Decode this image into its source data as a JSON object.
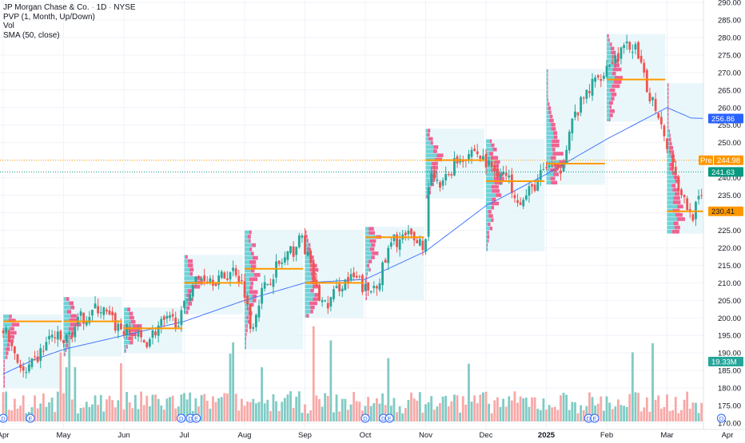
{
  "legend": {
    "title": "JP Morgan Chase & Co.",
    "interval": "1D",
    "exchange": "NYSE",
    "separator": "·",
    "indicators": [
      "PVP (1, Month, Up/Down)",
      "Vol",
      "SMA (50, close)"
    ]
  },
  "colors": {
    "up": "#26a69a",
    "down": "#ef5350",
    "up_volume": "#80cbc4",
    "down_volume": "#f7a9a7",
    "sma": "#2962ff",
    "poc": "#ff9800",
    "profile_bg": "#e3f4f8",
    "profile_up": "#6fd3d8",
    "profile_down": "#f06292",
    "current_line": "#089981",
    "premarket_line": "#ff9800",
    "event_circle": "#2962ff"
  },
  "chart_data": {
    "type": "candlestick",
    "title": "JP Morgan Chase & Co. · 1D · NYSE",
    "y_axis": {
      "ticks": [
        170,
        175,
        180,
        185,
        190,
        195,
        200,
        205,
        210,
        215,
        220,
        225,
        230,
        235,
        240,
        245,
        250,
        255,
        260,
        265,
        270,
        275,
        280,
        285,
        290
      ],
      "range": [
        169,
        292
      ]
    },
    "x_axis": {
      "ticks": [
        {
          "label": "Apr",
          "month": 0
        },
        {
          "label": "May",
          "month": 1
        },
        {
          "label": "Jun",
          "month": 2
        },
        {
          "label": "Jul",
          "month": 3
        },
        {
          "label": "Aug",
          "month": 4
        },
        {
          "label": "Sep",
          "month": 5
        },
        {
          "label": "Oct",
          "month": 6
        },
        {
          "label": "Nov",
          "month": 7
        },
        {
          "label": "Dec",
          "month": 8
        },
        {
          "label": "2025",
          "month": 9
        },
        {
          "label": "Feb",
          "month": 10
        },
        {
          "label": "Mar",
          "month": 11
        },
        {
          "label": "Apr",
          "month": 12
        }
      ]
    },
    "price_anchors": [
      {
        "month": 0.0,
        "close": 197
      },
      {
        "month": 0.2,
        "close": 190
      },
      {
        "month": 0.35,
        "close": 183
      },
      {
        "month": 0.55,
        "close": 188
      },
      {
        "month": 0.8,
        "close": 195
      },
      {
        "month": 1.0,
        "close": 193
      },
      {
        "month": 1.3,
        "close": 200
      },
      {
        "month": 1.6,
        "close": 203
      },
      {
        "month": 1.85,
        "close": 198
      },
      {
        "month": 2.05,
        "close": 196
      },
      {
        "month": 2.35,
        "close": 193
      },
      {
        "month": 2.6,
        "close": 198
      },
      {
        "month": 2.95,
        "close": 200
      },
      {
        "month": 3.1,
        "close": 209
      },
      {
        "month": 3.3,
        "close": 212
      },
      {
        "month": 3.6,
        "close": 211
      },
      {
        "month": 3.85,
        "close": 214
      },
      {
        "month": 4.0,
        "close": 208
      },
      {
        "month": 4.1,
        "close": 197
      },
      {
        "month": 4.25,
        "close": 206
      },
      {
        "month": 4.5,
        "close": 214
      },
      {
        "month": 4.75,
        "close": 218
      },
      {
        "month": 4.95,
        "close": 223
      },
      {
        "month": 5.05,
        "close": 217
      },
      {
        "month": 5.2,
        "close": 207
      },
      {
        "month": 5.35,
        "close": 203
      },
      {
        "month": 5.6,
        "close": 210
      },
      {
        "month": 5.85,
        "close": 211
      },
      {
        "month": 6.05,
        "close": 207
      },
      {
        "month": 6.25,
        "close": 212
      },
      {
        "month": 6.45,
        "close": 222
      },
      {
        "month": 6.75,
        "close": 223
      },
      {
        "month": 7.0,
        "close": 221
      },
      {
        "month": 7.05,
        "close": 240
      },
      {
        "month": 7.25,
        "close": 237
      },
      {
        "month": 7.5,
        "close": 245
      },
      {
        "month": 7.8,
        "close": 248
      },
      {
        "month": 8.0,
        "close": 244
      },
      {
        "month": 8.3,
        "close": 241
      },
      {
        "month": 8.6,
        "close": 233
      },
      {
        "month": 8.85,
        "close": 239
      },
      {
        "month": 9.05,
        "close": 244
      },
      {
        "month": 9.2,
        "close": 240
      },
      {
        "month": 9.4,
        "close": 255
      },
      {
        "month": 9.7,
        "close": 265
      },
      {
        "month": 10.0,
        "close": 272
      },
      {
        "month": 10.25,
        "close": 276
      },
      {
        "month": 10.45,
        "close": 278
      },
      {
        "month": 10.65,
        "close": 266
      },
      {
        "month": 10.85,
        "close": 259
      },
      {
        "month": 11.0,
        "close": 250
      },
      {
        "month": 11.2,
        "close": 237
      },
      {
        "month": 11.4,
        "close": 229
      },
      {
        "month": 11.6,
        "close": 235
      },
      {
        "month": 11.75,
        "close": 241.63
      }
    ],
    "sma_50": [
      {
        "month": 0.0,
        "value": 184
      },
      {
        "month": 0.5,
        "value": 188
      },
      {
        "month": 1.0,
        "value": 191
      },
      {
        "month": 2.0,
        "value": 195
      },
      {
        "month": 3.0,
        "value": 199
      },
      {
        "month": 4.0,
        "value": 205
      },
      {
        "month": 5.0,
        "value": 210
      },
      {
        "month": 6.0,
        "value": 211
      },
      {
        "month": 7.0,
        "value": 219
      },
      {
        "month": 8.0,
        "value": 232
      },
      {
        "month": 9.0,
        "value": 241
      },
      {
        "month": 10.0,
        "value": 251
      },
      {
        "month": 11.0,
        "value": 260
      },
      {
        "month": 11.4,
        "value": 257
      },
      {
        "month": 11.75,
        "value": 256.86
      }
    ],
    "volume_profiles": [
      {
        "start": 0.0,
        "end": 0.97,
        "low": 180,
        "high": 201,
        "poc": 199
      },
      {
        "start": 1.0,
        "end": 1.97,
        "low": 189,
        "high": 206,
        "poc": 199
      },
      {
        "start": 2.0,
        "end": 2.97,
        "low": 190,
        "high": 203,
        "poc": 197
      },
      {
        "start": 3.0,
        "end": 3.97,
        "low": 201,
        "high": 218,
        "poc": 210
      },
      {
        "start": 4.0,
        "end": 4.97,
        "low": 191,
        "high": 225,
        "poc": 214
      },
      {
        "start": 5.0,
        "end": 5.97,
        "low": 200,
        "high": 225,
        "poc": 210
      },
      {
        "start": 6.0,
        "end": 6.97,
        "low": 205,
        "high": 226,
        "poc": 223
      },
      {
        "start": 7.0,
        "end": 7.97,
        "low": 234,
        "high": 254,
        "poc": 245
      },
      {
        "start": 8.0,
        "end": 8.97,
        "low": 219,
        "high": 251,
        "poc": 239
      },
      {
        "start": 9.0,
        "end": 9.97,
        "low": 238,
        "high": 271,
        "poc": 244
      },
      {
        "start": 10.0,
        "end": 10.97,
        "low": 256,
        "high": 281,
        "poc": 268
      },
      {
        "start": 11.0,
        "end": 11.97,
        "low": 224,
        "high": 267,
        "poc": 230.41
      }
    ],
    "price_labels": [
      {
        "label": "",
        "value": 256.86,
        "color": "#2962ff",
        "text_color": "#ffffff"
      },
      {
        "label": "Pre",
        "value": 244.98,
        "color": "#ff9800",
        "text_color": "#ffffff"
      },
      {
        "label": "",
        "value": 241.63,
        "color": "#089981",
        "text_color": "#ffffff"
      },
      {
        "label": "",
        "value": 230.41,
        "color": "#ff9800",
        "text_color": "#131722"
      },
      {
        "label": "",
        "value": 19.33,
        "unit": "M",
        "color": "#26a69a",
        "text_color": "#ffffff",
        "kind": "volume"
      }
    ],
    "events": [
      {
        "month": 0.0,
        "letter": "D"
      },
      {
        "month": 0.45,
        "letter": "E"
      },
      {
        "month": 2.95,
        "letter": "D"
      },
      {
        "month": 3.1,
        "letter": "D"
      },
      {
        "month": 3.2,
        "letter": "E"
      },
      {
        "month": 6.0,
        "letter": "D"
      },
      {
        "month": 6.3,
        "letter": "D"
      },
      {
        "month": 6.4,
        "letter": "E"
      },
      {
        "month": 9.7,
        "letter": "D"
      },
      {
        "month": 9.8,
        "letter": "E"
      },
      {
        "month": 11.9,
        "letter": "D"
      }
    ]
  }
}
